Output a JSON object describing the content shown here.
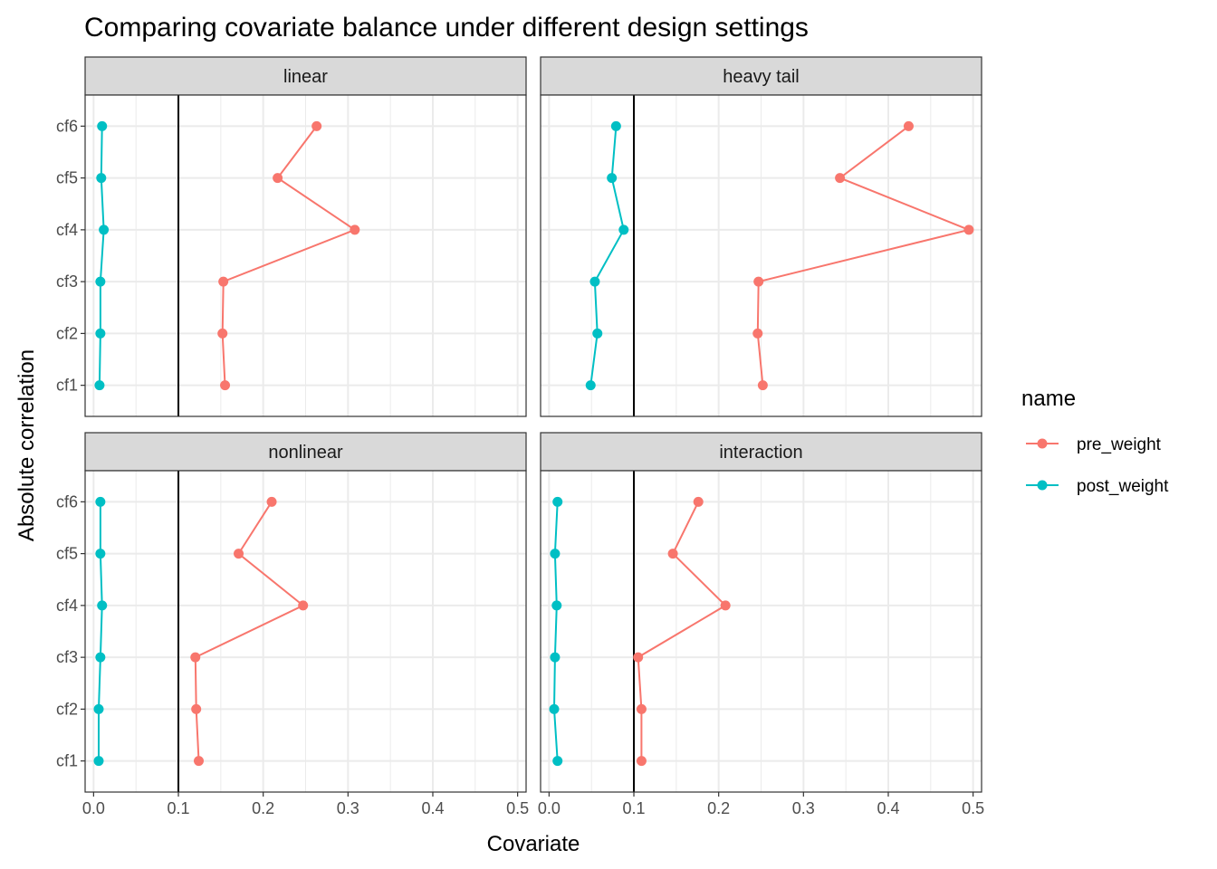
{
  "chart_data": {
    "type": "line",
    "title": "Comparing covariate balance under different design settings",
    "xlabel": "Covariate",
    "ylabel": "Absolute correlation",
    "xlim": [
      -0.01,
      0.51
    ],
    "x_ticks": [
      "0.0",
      "0.1",
      "0.2",
      "0.3",
      "0.4",
      "0.5"
    ],
    "x_tick_values": [
      0.0,
      0.1,
      0.2,
      0.3,
      0.4,
      0.5
    ],
    "categories": [
      "cf1",
      "cf2",
      "cf3",
      "cf4",
      "cf5",
      "cf6"
    ],
    "reference_line_x": 0.1,
    "grid": true,
    "legend": {
      "title": "name",
      "placement": "right",
      "entries": [
        {
          "name": "pre_weight",
          "color": "#F8766D"
        },
        {
          "name": "post_weight",
          "color": "#00BFC4"
        }
      ]
    },
    "facets": [
      {
        "label": "linear",
        "series": [
          {
            "name": "pre_weight",
            "values": [
              0.155,
              0.152,
              0.153,
              0.308,
              0.217,
              0.263
            ]
          },
          {
            "name": "post_weight",
            "values": [
              0.007,
              0.008,
              0.008,
              0.012,
              0.009,
              0.01
            ]
          }
        ]
      },
      {
        "label": "heavy tail",
        "series": [
          {
            "name": "pre_weight",
            "values": [
              0.252,
              0.246,
              0.247,
              0.495,
              0.343,
              0.424
            ]
          },
          {
            "name": "post_weight",
            "values": [
              0.049,
              0.057,
              0.054,
              0.088,
              0.074,
              0.079
            ]
          }
        ]
      },
      {
        "label": "nonlinear",
        "series": [
          {
            "name": "pre_weight",
            "values": [
              0.124,
              0.121,
              0.12,
              0.247,
              0.171,
              0.21
            ]
          },
          {
            "name": "post_weight",
            "values": [
              0.006,
              0.006,
              0.008,
              0.01,
              0.008,
              0.008
            ]
          }
        ]
      },
      {
        "label": "interaction",
        "series": [
          {
            "name": "pre_weight",
            "values": [
              0.109,
              0.109,
              0.105,
              0.208,
              0.146,
              0.176
            ]
          },
          {
            "name": "post_weight",
            "values": [
              0.01,
              0.006,
              0.007,
              0.009,
              0.007,
              0.01
            ]
          }
        ]
      }
    ]
  },
  "colors": {
    "strip_fill": "#D9D9D9",
    "grid": "#EBEBEB",
    "panel_border": "#333333",
    "reference_line": "#000000"
  }
}
